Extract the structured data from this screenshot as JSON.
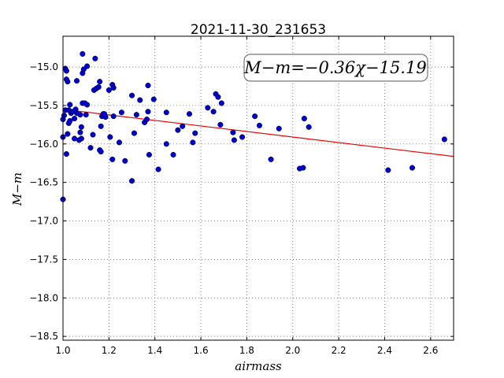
{
  "chart_data": {
    "type": "scatter",
    "title": "2021-11-30_231653",
    "xlabel": "airmass",
    "ylabel": "M−m",
    "annotation": "M−m=−0.36χ−15.19",
    "xlim": [
      1.0,
      2.7
    ],
    "ylim": [
      -18.55,
      -14.6
    ],
    "xticks": [
      1.0,
      1.2,
      1.4,
      1.6,
      1.8,
      2.0,
      2.2,
      2.4,
      2.6
    ],
    "xtick_labels": [
      "1.0",
      "1.2",
      "1.4",
      "1.6",
      "1.8",
      "2.0",
      "2.2",
      "2.4",
      "2.6"
    ],
    "yticks": [
      -15.0,
      -15.5,
      -16.0,
      -16.5,
      -17.0,
      -17.5,
      -18.0,
      -18.5
    ],
    "ytick_labels": [
      "−15.0",
      "−15.5",
      "−16.0",
      "−16.5",
      "−17.0",
      "−17.5",
      "−18.0",
      "−18.5"
    ],
    "grid": true,
    "fit_line": {
      "slope": -0.36,
      "intercept": -15.19,
      "color": "#ee0000"
    },
    "marker_color": "#0000cc",
    "points": [
      [
        1.0,
        -16.72
      ],
      [
        1.0,
        -15.91
      ],
      [
        1.0,
        -15.68
      ],
      [
        1.005,
        -15.63
      ],
      [
        1.01,
        -15.56
      ],
      [
        1.01,
        -15.02
      ],
      [
        1.015,
        -15.05
      ],
      [
        1.015,
        -15.16
      ],
      [
        1.02,
        -15.19
      ],
      [
        1.015,
        -16.13
      ],
      [
        1.02,
        -15.87
      ],
      [
        1.025,
        -15.73
      ],
      [
        1.025,
        -15.56
      ],
      [
        1.03,
        -15.7
      ],
      [
        1.03,
        -15.49
      ],
      [
        1.035,
        -15.6
      ],
      [
        1.04,
        -15.58
      ],
      [
        1.05,
        -15.93
      ],
      [
        1.05,
        -15.67
      ],
      [
        1.055,
        -15.55
      ],
      [
        1.06,
        -15.6
      ],
      [
        1.06,
        -15.18
      ],
      [
        1.07,
        -15.95
      ],
      [
        1.075,
        -15.85
      ],
      [
        1.075,
        -15.62
      ],
      [
        1.08,
        -15.93
      ],
      [
        1.08,
        -15.78
      ],
      [
        1.085,
        -15.08
      ],
      [
        1.085,
        -14.83
      ],
      [
        1.085,
        -15.47
      ],
      [
        1.09,
        -15.03
      ],
      [
        1.095,
        -15.47
      ],
      [
        1.1,
        -15.62
      ],
      [
        1.105,
        -15.49
      ],
      [
        1.105,
        -14.99
      ],
      [
        1.12,
        -16.05
      ],
      [
        1.13,
        -15.88
      ],
      [
        1.135,
        -15.3
      ],
      [
        1.14,
        -14.89
      ],
      [
        1.145,
        -15.28
      ],
      [
        1.155,
        -15.26
      ],
      [
        1.16,
        -15.19
      ],
      [
        1.16,
        -16.08
      ],
      [
        1.165,
        -16.1
      ],
      [
        1.165,
        -15.77
      ],
      [
        1.17,
        -15.64
      ],
      [
        1.175,
        -15.61
      ],
      [
        1.18,
        -15.61
      ],
      [
        1.185,
        -15.65
      ],
      [
        1.2,
        -15.3
      ],
      [
        1.205,
        -15.91
      ],
      [
        1.215,
        -16.2
      ],
      [
        1.215,
        -15.23
      ],
      [
        1.22,
        -15.27
      ],
      [
        1.22,
        -15.64
      ],
      [
        1.245,
        -15.98
      ],
      [
        1.255,
        -15.59
      ],
      [
        1.27,
        -16.22
      ],
      [
        1.3,
        -15.37
      ],
      [
        1.3,
        -16.48
      ],
      [
        1.31,
        -15.86
      ],
      [
        1.32,
        -15.62
      ],
      [
        1.335,
        -15.43
      ],
      [
        1.355,
        -15.72
      ],
      [
        1.365,
        -15.68
      ],
      [
        1.37,
        -15.58
      ],
      [
        1.37,
        -15.24
      ],
      [
        1.375,
        -16.14
      ],
      [
        1.395,
        -15.42
      ],
      [
        1.415,
        -16.33
      ],
      [
        1.45,
        -16.0
      ],
      [
        1.45,
        -15.59
      ],
      [
        1.48,
        -16.14
      ],
      [
        1.5,
        -15.82
      ],
      [
        1.52,
        -15.77
      ],
      [
        1.55,
        -15.61
      ],
      [
        1.565,
        -15.98
      ],
      [
        1.575,
        -15.86
      ],
      [
        1.63,
        -15.53
      ],
      [
        1.655,
        -15.58
      ],
      [
        1.665,
        -15.35
      ],
      [
        1.675,
        -15.39
      ],
      [
        1.685,
        -15.75
      ],
      [
        1.69,
        -15.47
      ],
      [
        1.74,
        -15.85
      ],
      [
        1.745,
        -15.95
      ],
      [
        1.78,
        -15.91
      ],
      [
        1.835,
        -15.64
      ],
      [
        1.855,
        -15.76
      ],
      [
        1.905,
        -16.2
      ],
      [
        1.94,
        -15.8
      ],
      [
        2.03,
        -16.32
      ],
      [
        2.045,
        -16.31
      ],
      [
        2.05,
        -15.67
      ],
      [
        2.07,
        -15.78
      ],
      [
        2.415,
        -16.34
      ],
      [
        2.52,
        -16.31
      ],
      [
        2.66,
        -15.94
      ]
    ]
  }
}
